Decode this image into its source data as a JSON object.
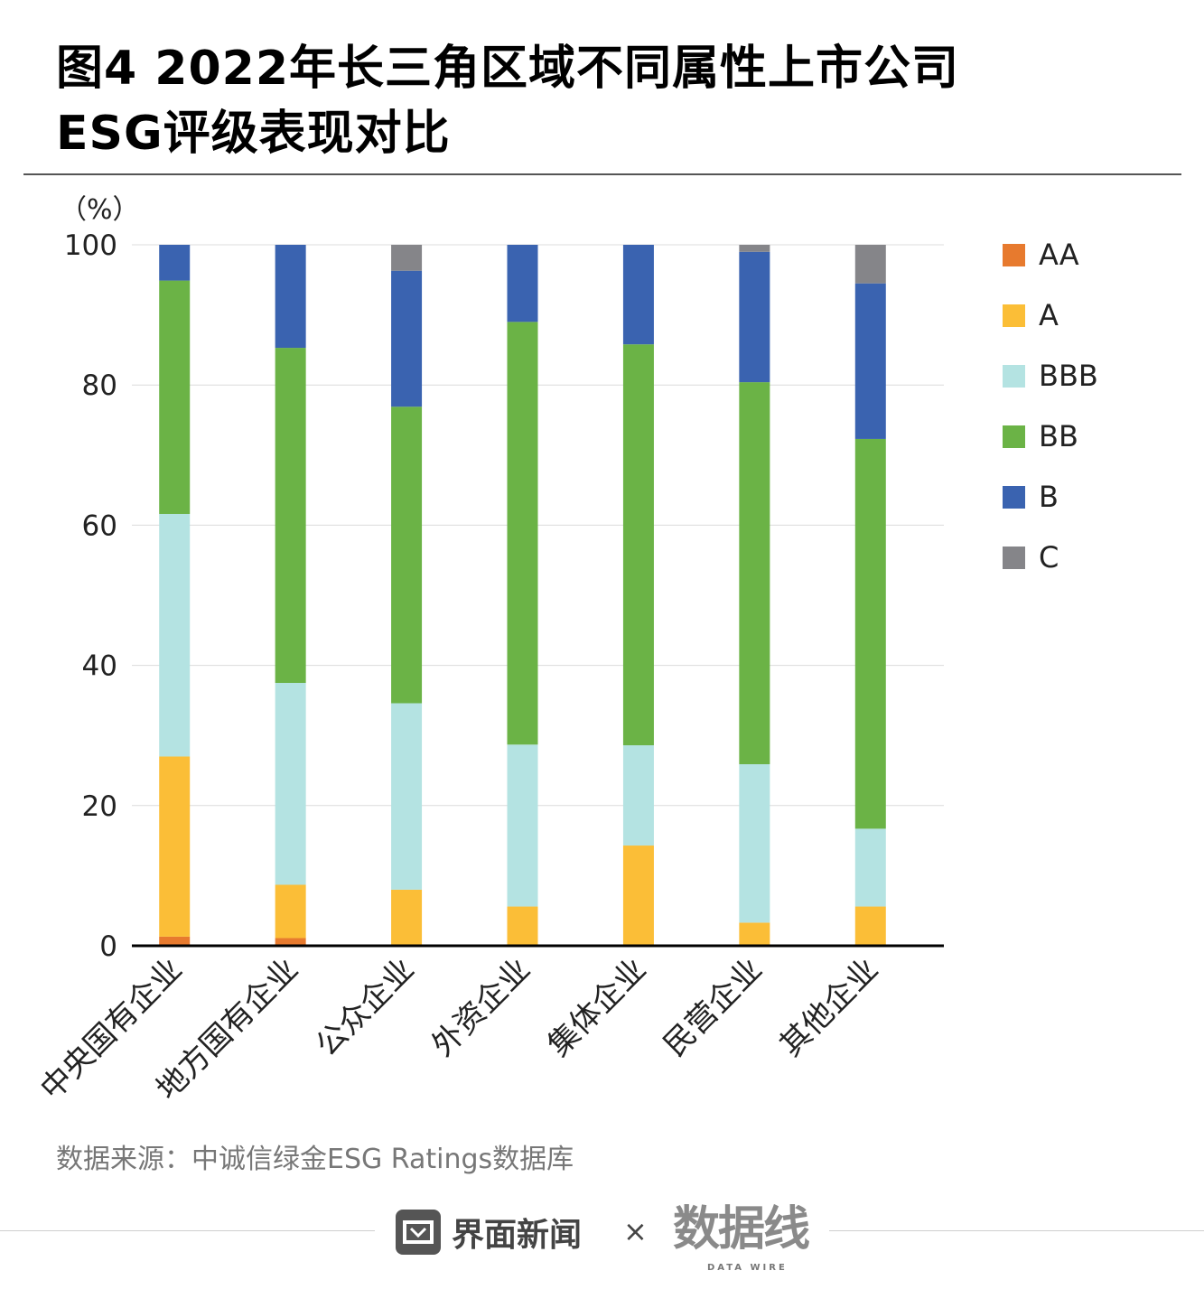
{
  "title": {
    "line1": "图4 2022年长三角区域不同属性上市公司",
    "line2": "ESG评级表现对比"
  },
  "chart_data": {
    "type": "bar",
    "stacked": true,
    "unit_label": "（%）",
    "categories": [
      "中央国有企业",
      "地方国有企业",
      "公众企业",
      "外资企业",
      "集体企业",
      "民营企业",
      "其他企业"
    ],
    "series": [
      {
        "name": "AA",
        "color": "#e77a2e",
        "values": [
          1.3,
          1.1,
          0,
          0,
          0,
          0,
          0
        ]
      },
      {
        "name": "A",
        "color": "#fbbe37",
        "values": [
          25.7,
          7.6,
          8.0,
          5.6,
          14.3,
          3.3,
          5.6
        ]
      },
      {
        "name": "BBB",
        "color": "#b4e3e2",
        "values": [
          34.6,
          28.8,
          26.6,
          23.1,
          14.3,
          22.6,
          11.1
        ]
      },
      {
        "name": "BB",
        "color": "#6bb346",
        "values": [
          33.3,
          47.8,
          42.3,
          60.3,
          57.2,
          54.5,
          55.6
        ]
      },
      {
        "name": "B",
        "color": "#3a63b0",
        "values": [
          5.1,
          14.7,
          19.4,
          11.0,
          14.2,
          18.6,
          22.2
        ]
      },
      {
        "name": "C",
        "color": "#858589",
        "values": [
          0,
          0,
          3.7,
          0,
          0,
          1.0,
          5.5
        ]
      }
    ],
    "yticks": [
      0,
      20,
      40,
      60,
      80,
      100
    ],
    "ylim": [
      0,
      100
    ],
    "grid": true,
    "legend": "right"
  },
  "source": "数据来源：中诚信绿金ESG Ratings数据库",
  "footer": {
    "brand1": "界面新闻",
    "times": "×",
    "brand2": "数据线",
    "brand2_sub": "DATA WIRE"
  }
}
